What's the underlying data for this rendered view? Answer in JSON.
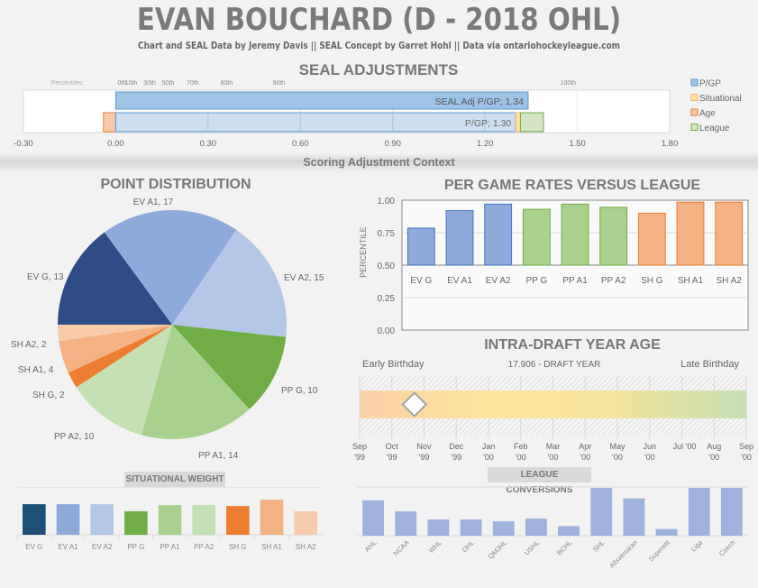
{
  "header": {
    "title": "EVAN BOUCHARD (D - 2018 OHL)",
    "subtitle": "Chart and SEAL Data by Jeremy Davis || SEAL Concept by Garret Hohl || Data via ontariohockeyleague.com"
  },
  "colors": {
    "pgp_dark": "#9dc3e6",
    "pgp_light": "#cddff1",
    "pgp_border": "#5b9bd5",
    "situational": "#ffe699",
    "age": "#f8cbad",
    "league": "#d5e4c3",
    "league_border": "#70ad47",
    "ev_g": "#2e4d87",
    "ev_a1": "#8eaadb",
    "ev_a2": "#b4c7e7",
    "pp_g": "#70ad47",
    "pp_a1": "#a9d18e",
    "pp_a2": "#c5e0b4",
    "sh_g": "#ed7d31",
    "sh_a1": "#f4b183",
    "sh_a2": "#f8cbad"
  },
  "chart_data": [
    {
      "id": "seal",
      "type": "bar",
      "orientation": "horizontal-stacked",
      "title": "SEAL ADJUSTMENTS",
      "xlim": [
        -0.3,
        1.8
      ],
      "xticks": [
        "-0.30",
        "0.00",
        "0.30",
        "0.60",
        "0.90",
        "1.20",
        "1.50",
        "1.80"
      ],
      "xtick_values": [
        -0.3,
        0.0,
        0.3,
        0.6,
        0.9,
        1.2,
        1.5,
        1.8
      ],
      "percentile_label": "Percentiles:",
      "percentiles": [
        {
          "label": "0th",
          "value": 0.0
        },
        {
          "label": "10th",
          "value": 0.05
        },
        {
          "label": "30th",
          "value": 0.11
        },
        {
          "label": "50th",
          "value": 0.17
        },
        {
          "label": "70th",
          "value": 0.25
        },
        {
          "label": "80th",
          "value": 0.36
        },
        {
          "label": "90th",
          "value": 0.53
        },
        {
          "label": "100th",
          "value": 1.47
        }
      ],
      "bars": [
        {
          "name": "SEAL Adj P/GP",
          "label": "SEAL Adj P/GP; 1.34",
          "segments": [
            {
              "series": "P/GP",
              "from": 0,
              "to": 1.34
            }
          ]
        },
        {
          "name": "P/GP",
          "label": "P/GP; 1.30",
          "segments": [
            {
              "series": "Age",
              "from": -0.04,
              "to": 0
            },
            {
              "series": "P/GP",
              "from": 0,
              "to": 1.3
            },
            {
              "series": "Situational",
              "from": 1.3,
              "to": 1.315
            },
            {
              "series": "League",
              "from": 1.315,
              "to": 1.39
            }
          ]
        }
      ],
      "legend": [
        "P/GP",
        "Situational",
        "Age",
        "League"
      ],
      "legend_position": "right"
    },
    {
      "id": "pie",
      "type": "pie",
      "title": "POINT DISTRIBUTION",
      "slices": [
        {
          "name": "EV G",
          "value": 13,
          "label": "EV G, 13"
        },
        {
          "name": "EV A1",
          "value": 17,
          "label": "EV A1, 17"
        },
        {
          "name": "EV A2",
          "value": 15,
          "label": "EV A2, 15"
        },
        {
          "name": "PP G",
          "value": 10,
          "label": "PP G, 10"
        },
        {
          "name": "PP A1",
          "value": 14,
          "label": "PP A1, 14"
        },
        {
          "name": "PP A2",
          "value": 10,
          "label": "PP A2, 10"
        },
        {
          "name": "SH G",
          "value": 2,
          "label": "SH G, 2"
        },
        {
          "name": "SH A1",
          "value": 4,
          "label": "SH A1, 4"
        },
        {
          "name": "SH A2",
          "value": 2,
          "label": "SH A2, 2"
        }
      ]
    },
    {
      "id": "pergame",
      "type": "bar",
      "title": "PER GAME RATES VERSUS LEAGUE",
      "ylabel": "PERCENTILE",
      "ylim": [
        0,
        1
      ],
      "yticks": [
        "0.00",
        "0.25",
        "0.50",
        "0.75",
        "1.00"
      ],
      "ytick_values": [
        0,
        0.25,
        0.5,
        0.75,
        1.0
      ],
      "baseline": 0.5,
      "categories": [
        "EV G",
        "EV A1",
        "EV A2",
        "PP G",
        "PP A1",
        "PP A2",
        "SH G",
        "SH A1",
        "SH A2"
      ],
      "values": [
        0.785,
        0.92,
        0.97,
        0.93,
        0.97,
        0.945,
        0.9,
        0.985,
        0.985
      ]
    },
    {
      "id": "age",
      "type": "scatter",
      "title": "INTRA-DRAFT YEAR AGE",
      "left_label": "Early Birthday",
      "center_label": "17.906 - DRAFT YEAR",
      "right_label": "Late Birthday",
      "months": [
        {
          "m": "Sep",
          "y": "'99"
        },
        {
          "m": "Oct",
          "y": "'99"
        },
        {
          "m": "Nov",
          "y": "'99"
        },
        {
          "m": "Dec",
          "y": "'99"
        },
        {
          "m": "Jan",
          "y": "'00"
        },
        {
          "m": "Feb",
          "y": "'00"
        },
        {
          "m": "Mar",
          "y": "'00"
        },
        {
          "m": "Apr",
          "y": "'00"
        },
        {
          "m": "May",
          "y": "'00"
        },
        {
          "m": "Jun",
          "y": "'00"
        },
        {
          "m": "Jul",
          "y": "'00"
        },
        {
          "m": "Aug",
          "y": "'00"
        },
        {
          "m": "Sep",
          "y": "'00"
        }
      ],
      "marker_month_index": 1.7
    },
    {
      "id": "situational",
      "type": "bar",
      "title": "SITUATIONAL  WEIGHT",
      "categories": [
        "EV G",
        "EV A1",
        "EV A2",
        "PP G",
        "PP A1",
        "PP A2",
        "SH G",
        "SH A1",
        "SH A2"
      ],
      "values": [
        1.0,
        1.0,
        1.0,
        0.77,
        0.97,
        0.97,
        0.94,
        1.15,
        0.77
      ]
    },
    {
      "id": "league",
      "type": "bar",
      "title": "LEAGUE CONVERSIONS",
      "categories": [
        "AHL",
        "NCAA",
        "WHL",
        "OHL",
        "QMJHL",
        "USHL",
        "BCHL",
        "SHL",
        "Allsvenskan",
        "Superelit",
        "Liga",
        "Czech"
      ],
      "values": [
        0.74,
        0.51,
        0.34,
        0.34,
        0.3,
        0.36,
        0.2,
        1.0,
        0.78,
        0.14,
        1.0,
        1.0
      ]
    }
  ]
}
